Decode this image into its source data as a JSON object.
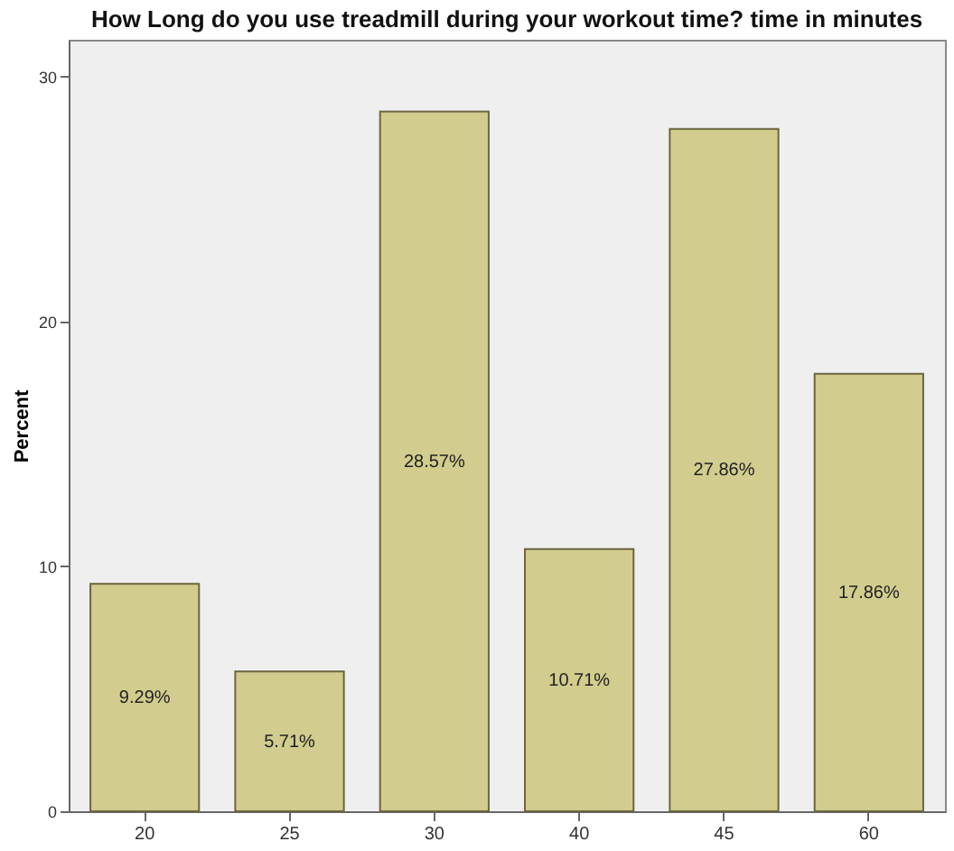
{
  "chart_data": {
    "type": "bar",
    "title": "How Long do you use treadmill during your workout time? time in minutes",
    "ylabel": "Percent",
    "categories": [
      "20",
      "25",
      "30",
      "40",
      "45",
      "60"
    ],
    "values": [
      9.29,
      5.71,
      28.57,
      10.71,
      27.86,
      17.86
    ],
    "value_labels": [
      "9.29%",
      "5.71%",
      "28.57%",
      "10.71%",
      "27.86%",
      "17.86%"
    ],
    "color": "#d2cc8e",
    "ylim": [
      0,
      31.5
    ],
    "yticks": [
      0,
      10,
      20,
      30
    ],
    "grid": false
  }
}
